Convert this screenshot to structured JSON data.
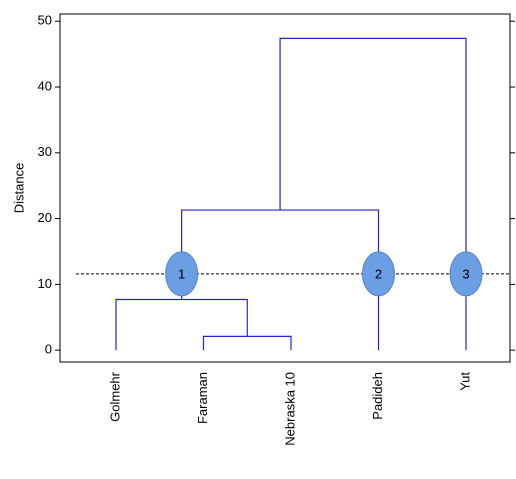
{
  "chart_data": {
    "type": "dendrogram",
    "y_label": "Distance",
    "leaves": [
      "Golmehr",
      "Faraman",
      "Nebraska 10",
      "Padideh",
      "Yut"
    ],
    "merges": [
      {
        "children": [
          1,
          2
        ],
        "height": 2.1
      },
      {
        "children": [
          0,
          5
        ],
        "height": 7.7
      },
      {
        "children": [
          6,
          3
        ],
        "height": 21.3
      },
      {
        "children": [
          7,
          4
        ],
        "height": 47.4
      }
    ],
    "cut_height": 11.6,
    "cluster_labels": [
      "1",
      "2",
      "3"
    ],
    "color": "#2323d8",
    "marker_color": "#6b9ee3",
    "ylim": [
      -1.8,
      51.1
    ],
    "yticks": [
      0,
      10,
      20,
      30,
      40,
      50
    ]
  }
}
